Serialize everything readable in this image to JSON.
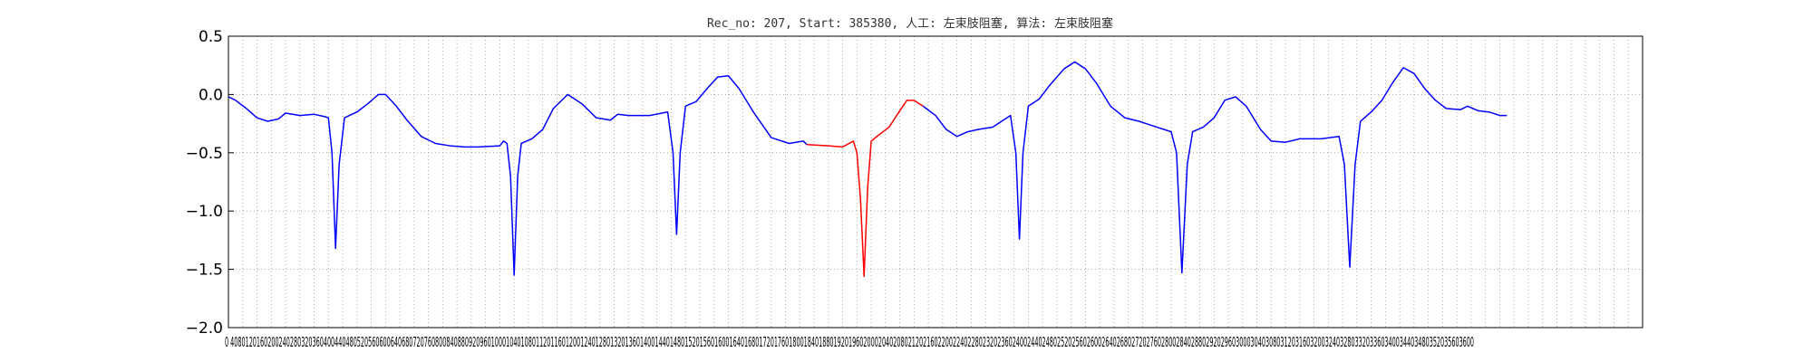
{
  "chart_data": {
    "type": "line",
    "title": "Rec_no: 207, Start: 385380, 人工: 左束肢阻塞, 算法: 左束肢阻塞",
    "xlabel": "",
    "ylabel": "",
    "xlim": [
      0,
      4000
    ],
    "ylim": [
      -2.0,
      0.5
    ],
    "grid": true,
    "y_ticks": [
      0.5,
      0.0,
      -0.5,
      -1.0,
      -1.5,
      -2.0
    ],
    "y_tick_labels": [
      "0.5",
      "0.0",
      "−0.5",
      "−1.0",
      "−1.5",
      "−2.0"
    ],
    "x_tick_step": 40,
    "x_tick_labels_visible": "0 4080120160200240280320360400440480520560600640680720760800840880920960100010401080112011601200124012801320136014001440148015201560160016401680172017601800184018801920196020002040208021202160220022402280232023602400244024802520256026002640268027202760280028402880292029603000304030803120316032003240328033203360340034403480352035603600",
    "series": [
      {
        "color": "#0000ff",
        "segments": [
          [
            [
              0,
              -0.02
            ],
            [
              20,
              -0.05
            ],
            [
              50,
              -0.12
            ],
            [
              80,
              -0.2
            ],
            [
              110,
              -0.23
            ],
            [
              140,
              -0.21
            ],
            [
              160,
              -0.16
            ],
            [
              180,
              -0.17
            ],
            [
              200,
              -0.18
            ],
            [
              240,
              -0.17
            ],
            [
              270,
              -0.19
            ],
            [
              280,
              -0.2
            ],
            [
              290,
              -0.5
            ],
            [
              300,
              -1.32
            ],
            [
              310,
              -0.6
            ],
            [
              325,
              -0.2
            ],
            [
              360,
              -0.15
            ],
            [
              390,
              -0.08
            ],
            [
              420,
              0.0
            ],
            [
              440,
              0.0
            ],
            [
              470,
              -0.1
            ],
            [
              500,
              -0.22
            ],
            [
              540,
              -0.36
            ],
            [
              580,
              -0.42
            ],
            [
              620,
              -0.44
            ],
            [
              660,
              -0.45
            ],
            [
              700,
              -0.45
            ],
            [
              760,
              -0.44
            ],
            [
              770,
              -0.4
            ],
            [
              780,
              -0.42
            ],
            [
              790,
              -0.7
            ],
            [
              800,
              -1.55
            ],
            [
              810,
              -0.7
            ],
            [
              820,
              -0.42
            ],
            [
              850,
              -0.38
            ],
            [
              880,
              -0.3
            ],
            [
              910,
              -0.12
            ],
            [
              950,
              0.0
            ],
            [
              990,
              -0.08
            ],
            [
              1030,
              -0.2
            ],
            [
              1070,
              -0.22
            ],
            [
              1090,
              -0.17
            ],
            [
              1120,
              -0.18
            ],
            [
              1180,
              -0.18
            ],
            [
              1230,
              -0.15
            ],
            [
              1245,
              -0.5
            ],
            [
              1255,
              -1.2
            ],
            [
              1265,
              -0.5
            ],
            [
              1280,
              -0.1
            ],
            [
              1310,
              -0.06
            ],
            [
              1340,
              0.05
            ],
            [
              1370,
              0.15
            ],
            [
              1400,
              0.16
            ],
            [
              1430,
              0.05
            ],
            [
              1470,
              -0.15
            ],
            [
              1520,
              -0.37
            ],
            [
              1570,
              -0.42
            ],
            [
              1610,
              -0.4
            ],
            [
              1620,
              -0.43
            ]
          ]
        ]
      },
      {
        "color": "#ff0000",
        "segments": [
          [
            [
              1620,
              -0.43
            ],
            [
              1680,
              -0.44
            ],
            [
              1720,
              -0.45
            ],
            [
              1750,
              -0.4
            ],
            [
              1760,
              -0.5
            ],
            [
              1770,
              -0.9
            ],
            [
              1780,
              -1.56
            ],
            [
              1790,
              -0.8
            ],
            [
              1800,
              -0.4
            ],
            [
              1820,
              -0.35
            ],
            [
              1850,
              -0.28
            ],
            [
              1880,
              -0.14
            ],
            [
              1900,
              -0.05
            ],
            [
              1920,
              -0.05
            ],
            [
              1945,
              -0.1
            ]
          ]
        ]
      },
      {
        "color": "#0000ff",
        "segments": [
          [
            [
              1945,
              -0.1
            ],
            [
              1980,
              -0.18
            ],
            [
              2010,
              -0.3
            ],
            [
              2040,
              -0.36
            ],
            [
              2070,
              -0.32
            ],
            [
              2100,
              -0.3
            ],
            [
              2140,
              -0.28
            ],
            [
              2190,
              -0.18
            ],
            [
              2205,
              -0.5
            ],
            [
              2215,
              -1.24
            ],
            [
              2225,
              -0.5
            ],
            [
              2240,
              -0.1
            ],
            [
              2270,
              -0.04
            ],
            [
              2300,
              0.08
            ],
            [
              2340,
              0.22
            ],
            [
              2370,
              0.28
            ],
            [
              2400,
              0.22
            ],
            [
              2430,
              0.1
            ],
            [
              2470,
              -0.1
            ],
            [
              2510,
              -0.2
            ],
            [
              2550,
              -0.23
            ],
            [
              2590,
              -0.27
            ],
            [
              2640,
              -0.32
            ],
            [
              2655,
              -0.5
            ],
            [
              2670,
              -1.53
            ],
            [
              2685,
              -0.6
            ],
            [
              2700,
              -0.32
            ],
            [
              2730,
              -0.28
            ],
            [
              2760,
              -0.2
            ],
            [
              2790,
              -0.05
            ],
            [
              2820,
              -0.02
            ],
            [
              2850,
              -0.1
            ],
            [
              2890,
              -0.3
            ],
            [
              2920,
              -0.4
            ],
            [
              2960,
              -0.41
            ],
            [
              3000,
              -0.38
            ],
            [
              3060,
              -0.38
            ],
            [
              3110,
              -0.36
            ],
            [
              3125,
              -0.6
            ],
            [
              3140,
              -1.48
            ],
            [
              3155,
              -0.6
            ],
            [
              3170,
              -0.23
            ],
            [
              3200,
              -0.15
            ],
            [
              3230,
              -0.05
            ],
            [
              3260,
              0.1
            ],
            [
              3290,
              0.23
            ],
            [
              3320,
              0.18
            ],
            [
              3350,
              0.05
            ],
            [
              3380,
              -0.05
            ],
            [
              3410,
              -0.12
            ],
            [
              3450,
              -0.13
            ],
            [
              3470,
              -0.1
            ],
            [
              3500,
              -0.14
            ],
            [
              3530,
              -0.15
            ],
            [
              3560,
              -0.18
            ],
            [
              3580,
              -0.18
            ]
          ]
        ]
      }
    ]
  }
}
